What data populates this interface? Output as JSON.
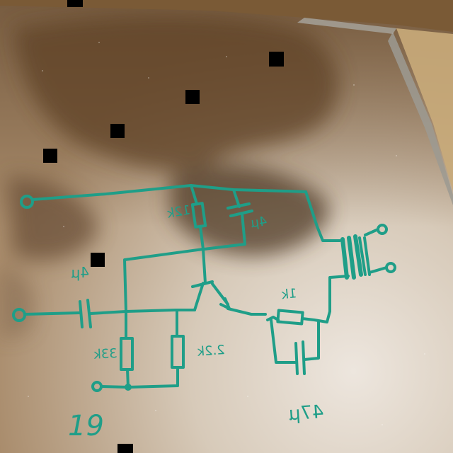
{
  "photo": {
    "subject": "hand-drawn transistor amplifier schematic on a glass whiteboard",
    "ink_color": "#1f9e88",
    "board_color": "#c9b9a4",
    "frame_color": "#b59a70"
  },
  "labels": {
    "r_top": "12k",
    "c_top": "4μ",
    "c_in": "4μ",
    "r_left": "33k",
    "r_mid": "2.2k",
    "r_emitter": "1k",
    "c_emitter": "47μ",
    "page_number": "19"
  }
}
